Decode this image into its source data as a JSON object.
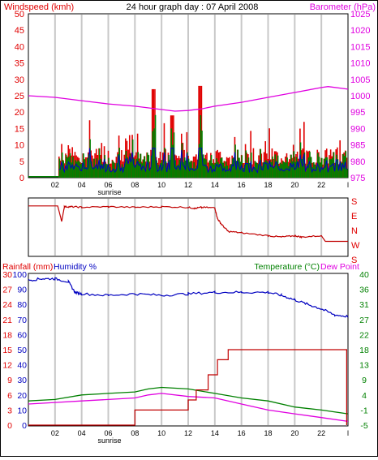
{
  "colors": {
    "red": "#e00000",
    "magenta": "#e000e0",
    "blue": "#0000c0",
    "green": "#008000",
    "darkred": "#c00000",
    "grid": "#c8c8c8",
    "tick": "#000000"
  },
  "x_ticks": [
    "02",
    "04",
    "06",
    "08",
    "10",
    "12",
    "14",
    "16",
    "18",
    "20",
    "22",
    "l"
  ],
  "sunrise_label": "sunrise",
  "chart_data": [
    {
      "type": "line",
      "title": "24 hour graph day : 07 April 2008",
      "left_axis_label": "Windspeed (kmh)",
      "right_axis_label": "Barometer (hPa)",
      "left_ticks": [
        0,
        5,
        10,
        15,
        20,
        25,
        30,
        35,
        40,
        45,
        50
      ],
      "right_ticks": [
        975,
        980,
        985,
        990,
        995,
        1000,
        1005,
        1010,
        1015,
        1020,
        1025
      ],
      "ylim_left": [
        0,
        50
      ],
      "ylim_right": [
        975,
        1025
      ],
      "x_range_hours": [
        0,
        24
      ],
      "series": [
        {
          "color": "magenta",
          "axis": "right",
          "x": [
            0,
            2,
            4,
            6,
            8,
            10,
            11,
            12,
            13,
            14,
            16,
            18,
            20,
            22,
            22.5,
            24
          ],
          "values": [
            1000,
            999.5,
            998.5,
            997.5,
            996.8,
            995.8,
            995.3,
            995.5,
            996,
            996.8,
            998,
            999.5,
            1001,
            1002.5,
            1002.8,
            1002
          ]
        }
      ]
    },
    {
      "type": "line",
      "left_axis_label": "",
      "right_ticks": [
        "S",
        "E",
        "N",
        "W",
        "S"
      ],
      "x_range_hours": [
        0,
        24
      ],
      "series": [
        {
          "color": "darkred",
          "x": [
            0,
            2.2,
            2.5,
            2.7,
            3.2,
            4,
            6,
            8,
            10,
            12,
            12.5,
            13,
            14,
            14.2,
            14.5,
            15,
            16,
            18,
            19,
            20,
            20.5,
            22,
            22.3,
            24
          ],
          "values": [
            0.75,
            0.75,
            0.2,
            0.72,
            0.72,
            0.7,
            0.72,
            0.7,
            0.72,
            0.7,
            0.66,
            0.7,
            0.68,
            0.3,
            0.1,
            -0.15,
            -0.2,
            -0.3,
            -0.35,
            -0.3,
            -0.35,
            -0.3,
            -0.5,
            -0.5
          ]
        }
      ]
    },
    {
      "type": "line",
      "left_axis_label_1": "Rainfall (mm)",
      "left_axis_label_2": "Humidity %",
      "right_axis_label_1": "Temperature (°C)",
      "right_axis_label_2": "Dew Point",
      "rain_ticks": [
        0,
        3,
        6,
        9,
        12,
        15,
        18,
        21,
        24,
        27,
        30
      ],
      "humidity_ticks": [
        0,
        10,
        20,
        30,
        40,
        50,
        60,
        70,
        80,
        90,
        100
      ],
      "temp_ticks": [
        -5,
        -1,
        4,
        9,
        13,
        18,
        22,
        27,
        31,
        36,
        40
      ],
      "ylim_rain": [
        0,
        30
      ],
      "ylim_humidity": [
        0,
        100
      ],
      "x_range_hours": [
        0,
        24
      ],
      "series": [
        {
          "color": "blue",
          "axis": "humidity",
          "x": [
            0,
            1,
            2,
            3,
            3.5,
            4,
            6,
            8,
            10,
            12,
            14,
            16,
            18,
            19,
            20,
            21,
            22,
            23,
            24
          ],
          "values": [
            96,
            97,
            97,
            95,
            88,
            87,
            86,
            87,
            86,
            87,
            88,
            88,
            88,
            86,
            83,
            80,
            77,
            73,
            72
          ]
        },
        {
          "color": "green",
          "axis": "temp",
          "x": [
            0,
            2,
            4,
            6,
            8,
            9,
            10,
            12,
            14,
            16,
            18,
            20,
            22,
            24
          ],
          "values": [
            2,
            2.5,
            4,
            4.5,
            5,
            6,
            6.5,
            6,
            4.5,
            3,
            2,
            0,
            -1,
            -2
          ]
        },
        {
          "color": "magenta",
          "axis": "temp",
          "x": [
            0,
            2,
            4,
            6,
            8,
            9,
            10,
            12,
            14,
            16,
            18,
            20,
            22,
            24
          ],
          "values": [
            1,
            1.5,
            2,
            2.5,
            3,
            4,
            4.5,
            3.5,
            3,
            1,
            -1,
            -2,
            -3,
            -4
          ]
        },
        {
          "color": "darkred",
          "axis": "rain",
          "x": [
            0,
            6,
            7.2,
            8,
            11,
            12,
            12.6,
            13.5,
            14.2,
            15,
            16,
            18,
            20,
            22,
            23.8,
            23.9
          ],
          "values": [
            0,
            0,
            0,
            3,
            3,
            5,
            7,
            10,
            13,
            15,
            15,
            15,
            15,
            15,
            15,
            0
          ]
        }
      ]
    }
  ]
}
